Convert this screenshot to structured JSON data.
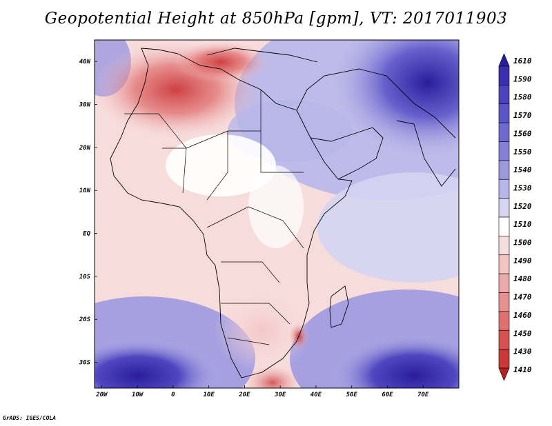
{
  "title": "Geopotential Height at 850hPa [gpm], VT: 2017011903",
  "credit": "GrADS: IGES/COLA",
  "map": {
    "lon_range": [
      -22,
      80
    ],
    "lat_range": [
      -36,
      45
    ],
    "x_ticks": [
      {
        "label": "20W",
        "lon": -20
      },
      {
        "label": "10W",
        "lon": -10
      },
      {
        "label": "0",
        "lon": 0
      },
      {
        "label": "10E",
        "lon": 10
      },
      {
        "label": "20E",
        "lon": 20
      },
      {
        "label": "30E",
        "lon": 30
      },
      {
        "label": "40E",
        "lon": 40
      },
      {
        "label": "50E",
        "lon": 50
      },
      {
        "label": "60E",
        "lon": 60
      },
      {
        "label": "70E",
        "lon": 70
      }
    ],
    "y_ticks": [
      {
        "label": "40N",
        "lat": 40
      },
      {
        "label": "30N",
        "lat": 30
      },
      {
        "label": "20N",
        "lat": 20
      },
      {
        "label": "10N",
        "lat": 10
      },
      {
        "label": "EQ",
        "lat": 0
      },
      {
        "label": "10S",
        "lat": -10
      },
      {
        "label": "20S",
        "lat": -20
      },
      {
        "label": "30S",
        "lat": -30
      }
    ]
  },
  "colorbar": {
    "levels": [
      "1610",
      "1590",
      "1580",
      "1570",
      "1560",
      "1550",
      "1540",
      "1530",
      "1520",
      "1510",
      "1500",
      "1490",
      "1480",
      "1470",
      "1460",
      "1450",
      "1430",
      "1410"
    ],
    "colors": [
      "#2a1d9c",
      "#3a2fb0",
      "#4a42be",
      "#5c55c8",
      "#6f6ad0",
      "#8480d8",
      "#9c99e0",
      "#b7b6ea",
      "#d4d4f3",
      "#ffffff",
      "#f7dcdc",
      "#f3c4c4",
      "#eeaaaa",
      "#e88f8f",
      "#e07070",
      "#d85050",
      "#cc3838",
      "#b22222"
    ]
  }
}
